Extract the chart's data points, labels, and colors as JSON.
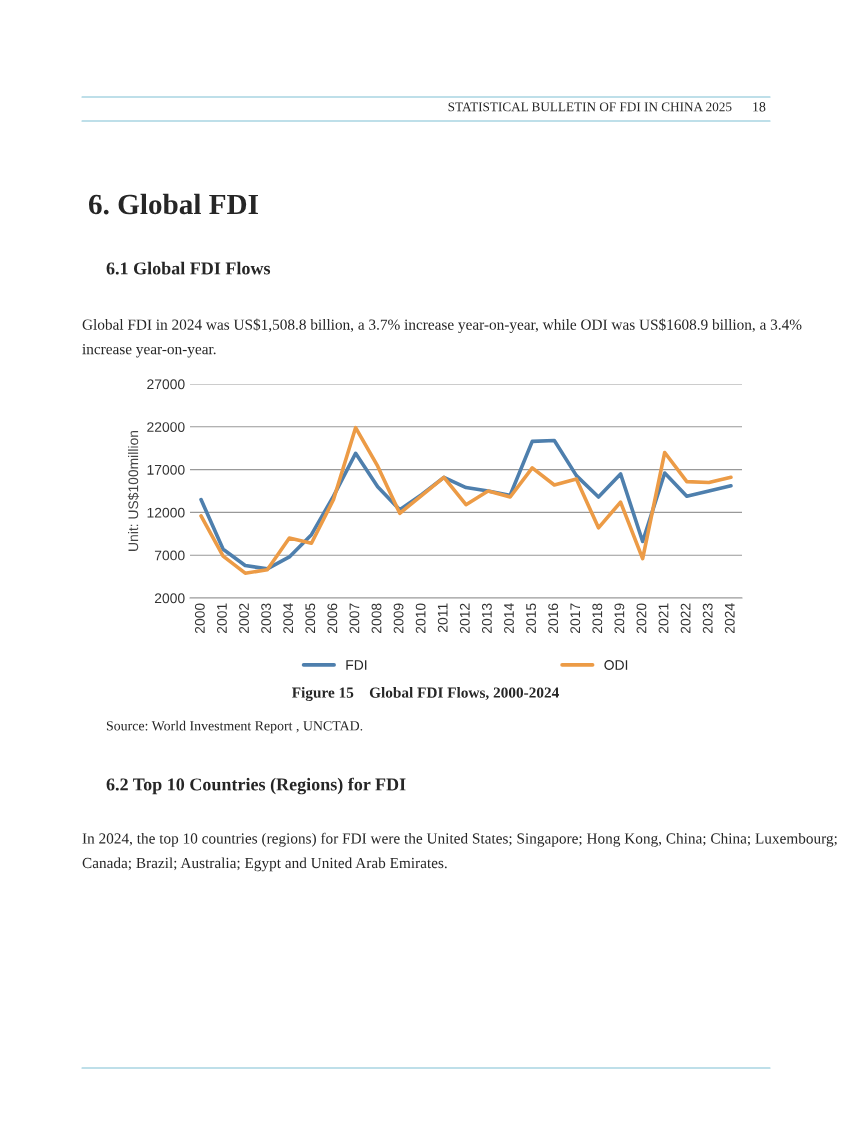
{
  "chart_data": {
    "type": "line",
    "title": "Figure 15    Global FDI Flows, 2000-2024",
    "ylabel": "Unit: US$100million",
    "categories": [
      "2000",
      "2001",
      "2002",
      "2003",
      "2004",
      "2005",
      "2006",
      "2007",
      "2008",
      "2009",
      "2010",
      "2011",
      "2012",
      "2013",
      "2014",
      "2015",
      "2016",
      "2017",
      "2018",
      "2019",
      "2020",
      "2021",
      "2022",
      "2023",
      "2024"
    ],
    "series": [
      {
        "name": "FDI",
        "color": "#4e7fad",
        "values": [
          13500,
          7700,
          5800,
          5400,
          6800,
          9400,
          13900,
          18900,
          15000,
          12300,
          14100,
          16100,
          14900,
          14500,
          14000,
          20300,
          20400,
          16300,
          13800,
          16500,
          8600,
          16600,
          13900,
          14500,
          15100
        ]
      },
      {
        "name": "ODI",
        "color": "#ec9b46",
        "values": [
          11600,
          6900,
          4900,
          5300,
          9000,
          8400,
          13500,
          21900,
          17400,
          11900,
          14000,
          16100,
          12900,
          14500,
          13800,
          17200,
          15200,
          15900,
          10200,
          13200,
          6600,
          19000,
          15600,
          15500,
          16100
        ]
      }
    ],
    "ylim": [
      2000,
      27000
    ],
    "yticks": [
      2000,
      7000,
      12000,
      17000,
      22000,
      27000
    ],
    "grid": "y",
    "legend": "bottom",
    "marker": "none",
    "line_style": "solid",
    "annotations": [
      "STATISTICAL BULLETIN OF FDI IN CHINA 2025",
      "18",
      "6. Global FDI",
      "6.1 Global FDI Flows",
      "Global FDI in 2024 was US$1,508.8 billion, a 3.7% increase year-on-year, while ODI was US$1608.9 billion, a 3.4% increase year-on-year.",
      "Source: World Investment Report , UNCTAD.",
      "6.2 Top 10 Countries (Regions) for FDI",
      "In 2024, the top 10 countries (regions) for FDI were the United States; Singapore; Hong Kong, China; China; Luxembourg; Canada; Brazil; Australia; Egypt and United Arab Emirates."
    ]
  }
}
